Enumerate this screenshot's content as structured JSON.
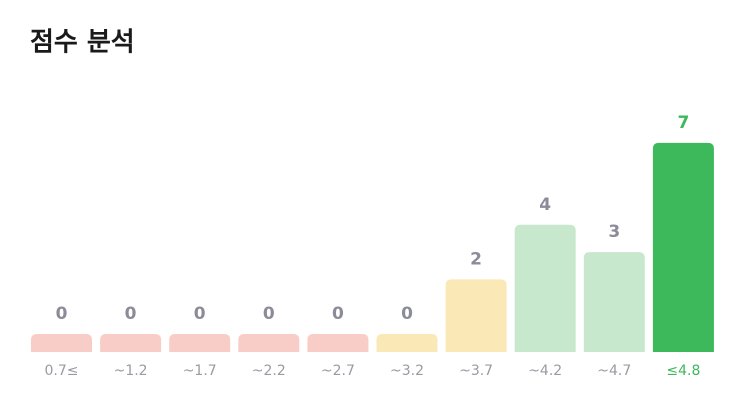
{
  "chart_data": {
    "type": "bar",
    "title": "점수 분석",
    "categories": [
      "0.7≤",
      "~1.2",
      "~1.7",
      "~2.2",
      "~2.7",
      "~3.2",
      "~3.7",
      "~4.2",
      "~4.7",
      "≤4.8"
    ],
    "values": [
      0,
      0,
      0,
      0,
      0,
      0,
      2,
      4,
      3,
      7
    ],
    "colors": [
      "#f9cdc7",
      "#f9cdc7",
      "#f9cdc7",
      "#f9cdc7",
      "#f9cdc7",
      "#fae8b6",
      "#fae8b6",
      "#c7e8cd",
      "#c7e8cd",
      "#3db85a"
    ],
    "label_colors": [
      "#8b8b99",
      "#8b8b99",
      "#8b8b99",
      "#8b8b99",
      "#8b8b99",
      "#8b8b99",
      "#8b8b99",
      "#8b8b99",
      "#8b8b99",
      "#3db85a"
    ]
  }
}
